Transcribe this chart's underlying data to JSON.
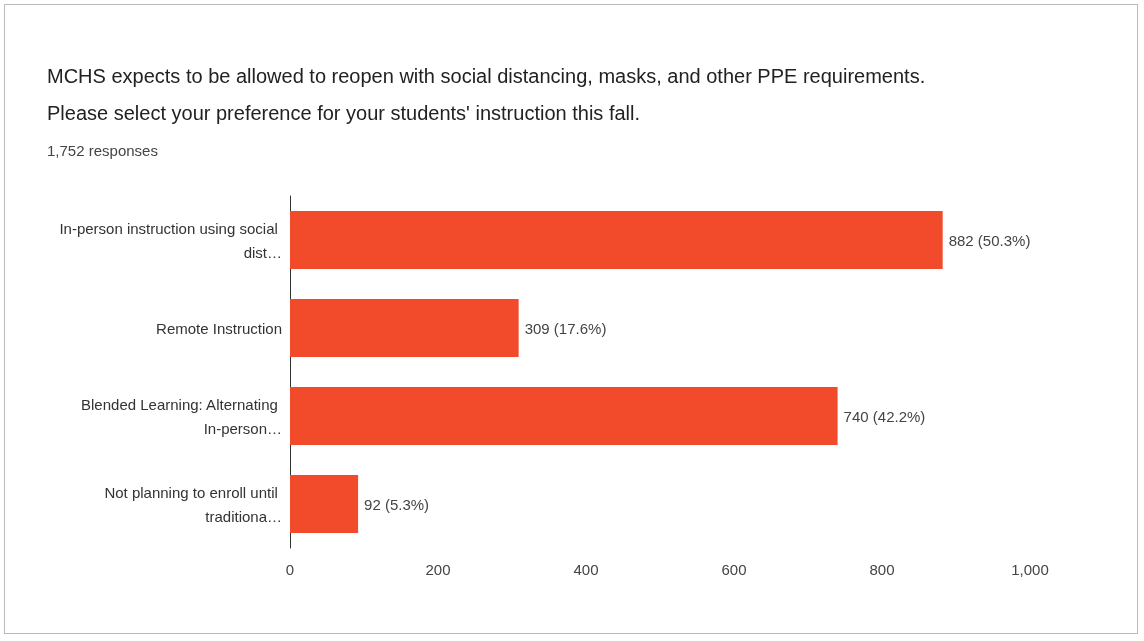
{
  "chart_data": {
    "type": "bar",
    "orientation": "horizontal",
    "title": "MCHS expects to be allowed to reopen with social distancing, masks, and other PPE requirements. Please select your preference for your students' instruction this fall.",
    "subtitle": "1,752 responses",
    "categories": [
      "In-person instruction using social dist…",
      "Remote Instruction",
      "Blended Learning: Alternating In-person…",
      "Not planning to enroll until traditiona…"
    ],
    "values": [
      882,
      309,
      740,
      92
    ],
    "value_labels": [
      "882 (50.3%)",
      "309 (17.6%)",
      "740 (42.2%)",
      "92 (5.3%)"
    ],
    "color": "#f24b2c",
    "xlim": [
      0,
      1000
    ],
    "xticks": [
      0,
      200,
      400,
      600,
      800,
      {
        "value": 1000,
        "label": "1,000"
      }
    ],
    "grid": false
  }
}
